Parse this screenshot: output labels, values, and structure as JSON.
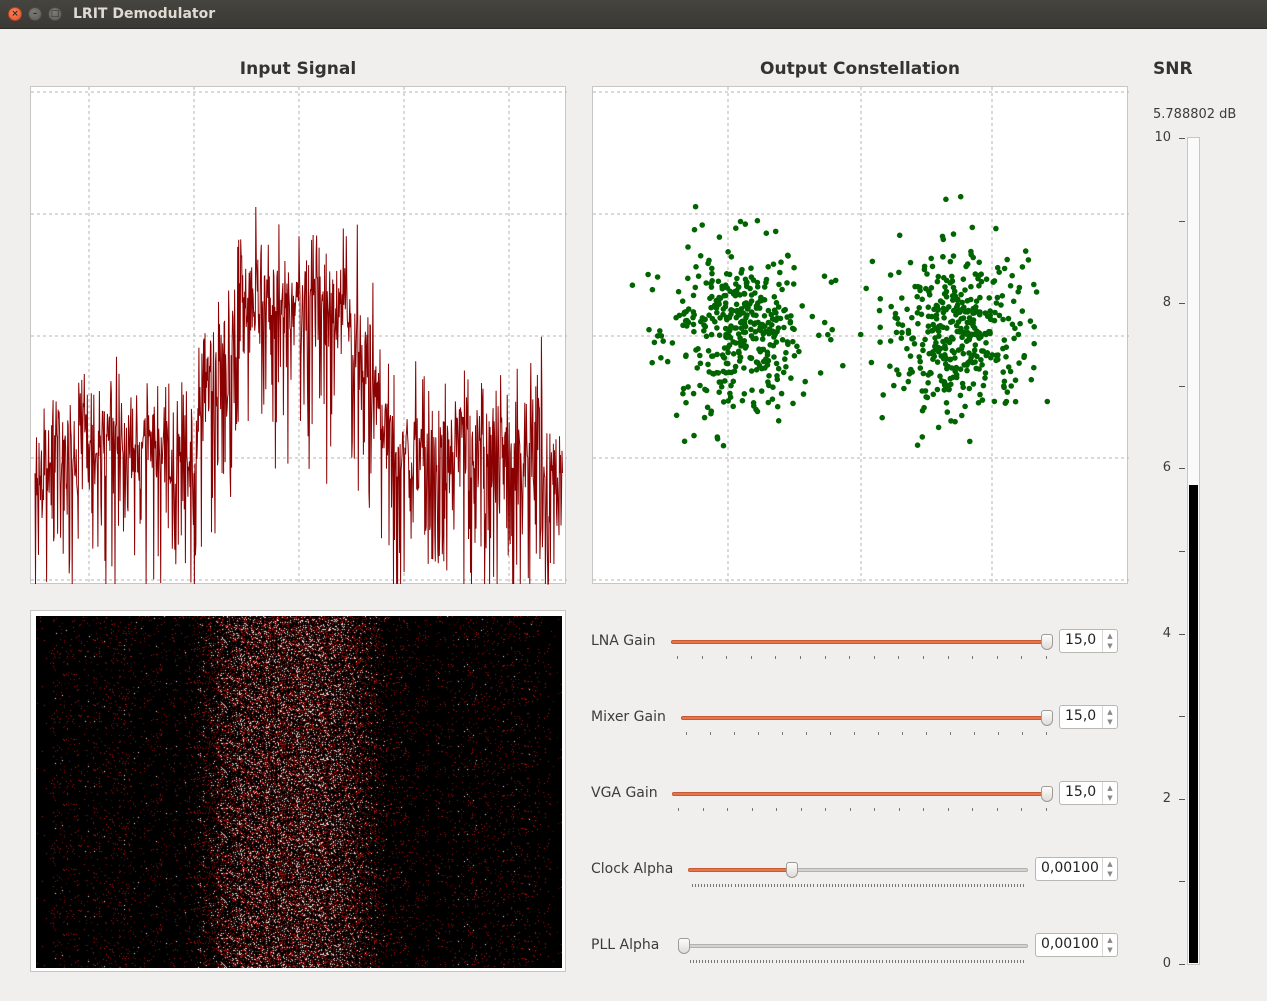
{
  "window": {
    "title": "LRIT Demodulator"
  },
  "panels": {
    "input_signal_title": "Input Signal",
    "output_constellation_title": "Output Constellation",
    "snr_title": "SNR"
  },
  "snr": {
    "value_text": "5.788802 dB",
    "value": 5.788802,
    "min": 0,
    "max": 10,
    "tick_labels": [
      "10",
      "8",
      "6",
      "4",
      "2",
      "0"
    ]
  },
  "controls": [
    {
      "label": "LNA Gain",
      "value_text": "15,0",
      "fraction": 1.0
    },
    {
      "label": "Mixer Gain",
      "value_text": "15,0",
      "fraction": 1.0
    },
    {
      "label": "VGA Gain",
      "value_text": "15,0",
      "fraction": 1.0
    },
    {
      "label": "Clock Alpha",
      "value_text": "0,00100",
      "fraction": 0.3
    },
    {
      "label": "PLL Alpha",
      "value_text": "0,00100",
      "fraction": 0.0
    }
  ],
  "colors": {
    "spectrum": "#8b0000",
    "constellation": "#006400",
    "slider_fill": "#e9744a",
    "snr_bar": "#000000"
  },
  "icons": {
    "close": "close-icon",
    "minimize": "minimize-icon",
    "maximize": "maximize-icon"
  }
}
